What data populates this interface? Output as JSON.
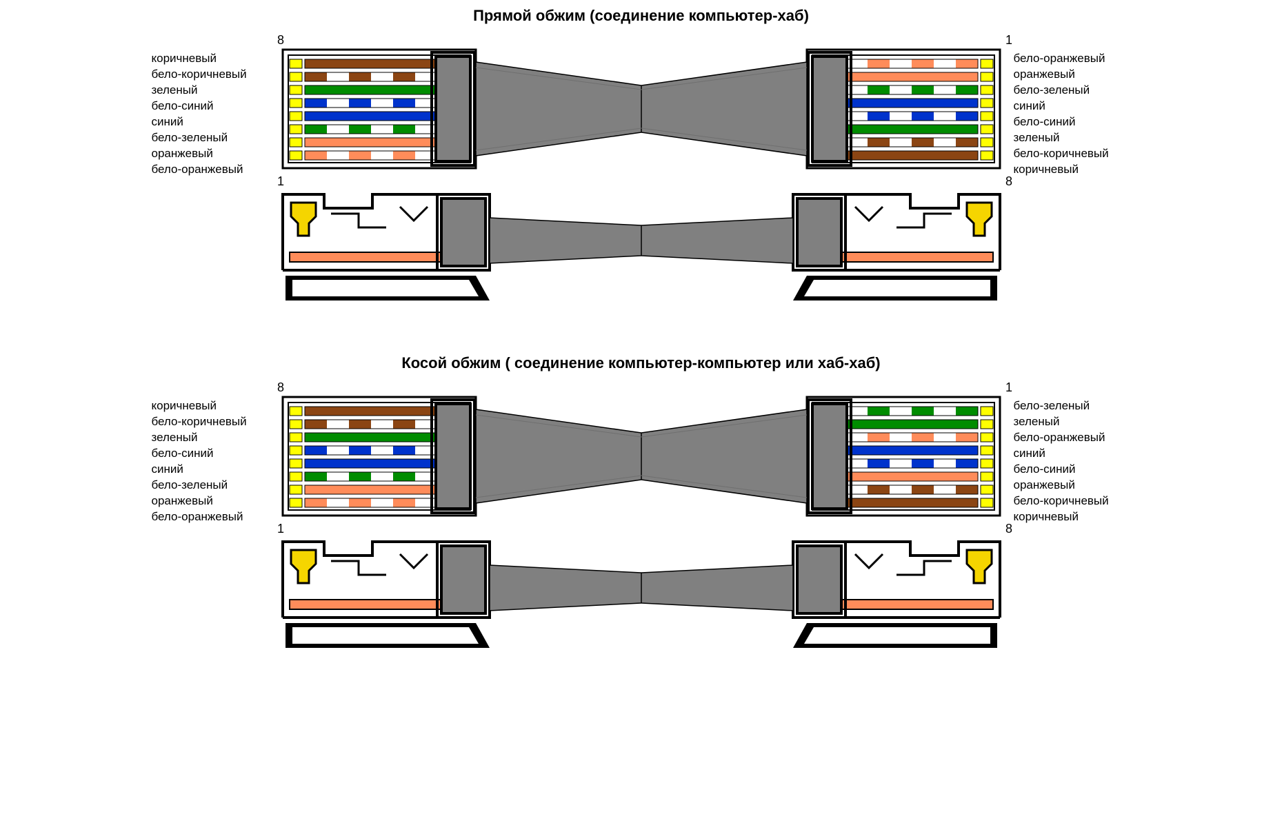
{
  "colors": {
    "brown": "#8b4513",
    "white_brown": [
      "#ffffff",
      "#8b4513"
    ],
    "green": "#008c00",
    "white_blue": [
      "#ffffff",
      "#0033cc"
    ],
    "blue": "#0033cc",
    "white_green": [
      "#ffffff",
      "#008c00"
    ],
    "orange": "#ff8c5a",
    "white_orange": [
      "#ffffff",
      "#ff8c5a"
    ],
    "cable_gray": "#808080",
    "cable_gray_dark": "#6f6f6f",
    "pin_yellow": "#ffff00",
    "pin_gold": "#f5d500",
    "body_outline": "#000000",
    "bg": "#ffffff"
  },
  "geometry": {
    "connector_width": 280,
    "connector_height": 190,
    "wire_height": 13,
    "wire_gap": 6,
    "pin_width": 18,
    "side_svg_height": 170
  },
  "sections": [
    {
      "title": "Прямой обжим (соединение компьютер-хаб)",
      "left_pin_top": "8",
      "left_pin_bottom": "1",
      "right_pin_top": "1",
      "right_pin_bottom": "8",
      "left_labels": [
        "коричневый",
        "бело-коричневый",
        "зеленый",
        "бело-синий",
        "синий",
        "бело-зеленый",
        "оранжевый",
        "бело-оранжевый"
      ],
      "left_wires": [
        "brown",
        "white_brown",
        "green",
        "white_blue",
        "blue",
        "white_green",
        "orange",
        "white_orange"
      ],
      "right_labels": [
        "бело-оранжевый",
        "оранжевый",
        "бело-зеленый",
        "синий",
        "бело-синий",
        "зеленый",
        "бело-коричневый",
        "коричневый"
      ],
      "right_wires": [
        "white_orange",
        "orange",
        "white_green",
        "blue",
        "white_blue",
        "green",
        "white_brown",
        "brown"
      ]
    },
    {
      "title": "Косой обжим ( соединение компьютер-компьютер или хаб-хаб)",
      "left_pin_top": "8",
      "left_pin_bottom": "1",
      "right_pin_top": "1",
      "right_pin_bottom": "8",
      "left_labels": [
        "коричневый",
        "бело-коричневый",
        "зеленый",
        "бело-синий",
        "синий",
        "бело-зеленый",
        "оранжевый",
        "бело-оранжевый"
      ],
      "left_wires": [
        "brown",
        "white_brown",
        "green",
        "white_blue",
        "blue",
        "white_green",
        "orange",
        "white_orange"
      ],
      "right_labels": [
        "бело-зеленый",
        "зеленый",
        "бело-оранжевый",
        "синий",
        "бело-синий",
        "оранжевый",
        "бело-коричневый",
        "коричневый"
      ],
      "right_wires": [
        "white_green",
        "green",
        "white_orange",
        "blue",
        "white_blue",
        "orange",
        "white_brown",
        "brown"
      ]
    }
  ]
}
